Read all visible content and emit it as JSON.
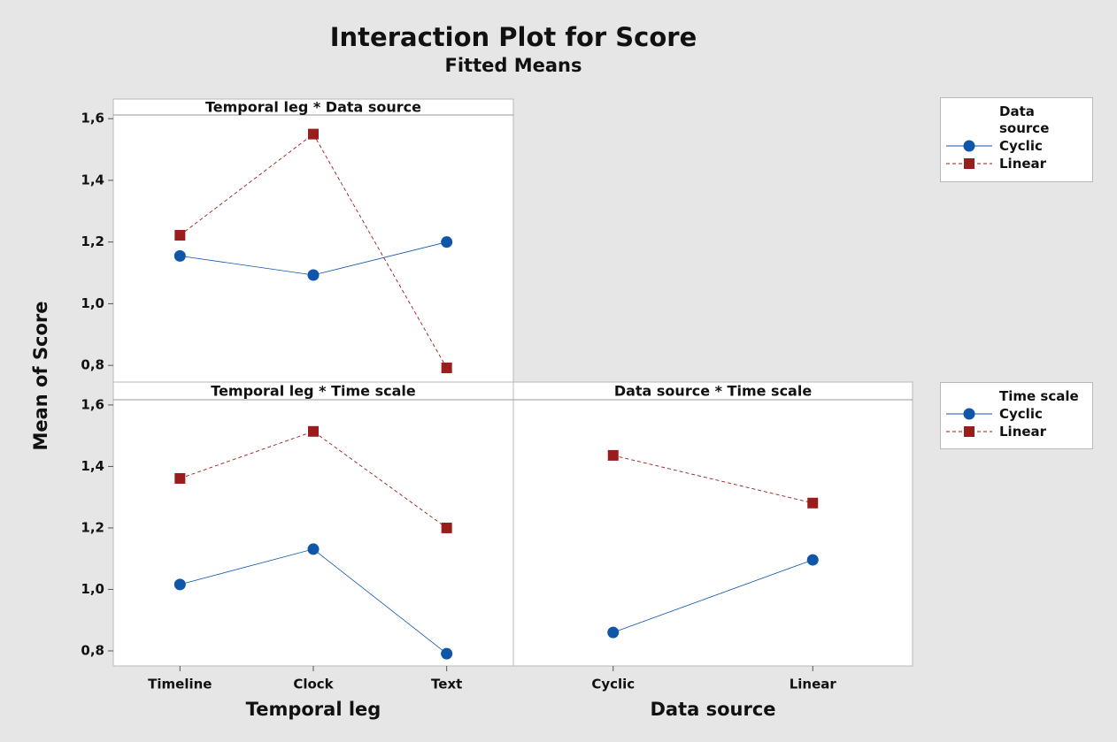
{
  "title": "Interaction Plot for Score",
  "subtitle": "Fitted Means",
  "y_label": "Mean of Score",
  "legends": [
    {
      "title": "Data source",
      "items": [
        {
          "name": "Cyclic",
          "color": "#0f56a8",
          "marker": "circle",
          "dashed": false
        },
        {
          "name": "Linear",
          "color": "#9b1c1c",
          "marker": "square",
          "dashed": true
        }
      ]
    },
    {
      "title": "Time scale",
      "items": [
        {
          "name": "Cyclic",
          "color": "#0f56a8",
          "marker": "circle",
          "dashed": false
        },
        {
          "name": "Linear",
          "color": "#9b1c1c",
          "marker": "square",
          "dashed": true
        }
      ]
    }
  ],
  "chart_data": [
    {
      "type": "line",
      "title": "Temporal leg * Data source",
      "series": [
        {
          "color": "#0f56a8",
          "marker": "circle",
          "dashed": false,
          "values": [
            1.155,
            1.093,
            1.2
          ]
        },
        {
          "color": "#9b1c1c",
          "marker": "square",
          "dashed": true,
          "values": [
            1.222,
            1.55,
            0.792
          ]
        }
      ],
      "ylim": [
        0.746,
        1.612
      ],
      "yticks": [
        {
          "value": 0.8,
          "label": "0,8"
        },
        {
          "value": 1.0,
          "label": "1,0"
        },
        {
          "value": 1.2,
          "label": "1,2"
        },
        {
          "value": 1.4,
          "label": "1,4"
        },
        {
          "value": 1.6,
          "label": "1,6"
        }
      ]
    },
    {
      "type": "line",
      "title": "Temporal leg * Time scale",
      "x_label": "Temporal leg",
      "categories": [
        "Timeline",
        "Clock",
        "Text"
      ],
      "series": [
        {
          "color": "#0f56a8",
          "marker": "circle",
          "dashed": false,
          "values": [
            1.016,
            1.131,
            0.791
          ]
        },
        {
          "color": "#9b1c1c",
          "marker": "square",
          "dashed": true,
          "values": [
            1.361,
            1.514,
            1.2
          ]
        }
      ],
      "ylim": [
        0.751,
        1.617
      ],
      "yticks": [
        {
          "value": 0.8,
          "label": "0,8"
        },
        {
          "value": 1.0,
          "label": "1,0"
        },
        {
          "value": 1.2,
          "label": "1,2"
        },
        {
          "value": 1.4,
          "label": "1,4"
        },
        {
          "value": 1.6,
          "label": "1,6"
        }
      ]
    },
    {
      "type": "line",
      "title": "Data source * Time scale",
      "x_label": "Data source",
      "categories": [
        "Cyclic",
        "Linear"
      ],
      "series": [
        {
          "color": "#0f56a8",
          "marker": "circle",
          "dashed": false,
          "values": [
            0.86,
            1.096
          ]
        },
        {
          "color": "#9b1c1c",
          "marker": "square",
          "dashed": true,
          "values": [
            1.436,
            1.281
          ]
        }
      ],
      "ylim": [
        0.751,
        1.617
      ]
    }
  ]
}
